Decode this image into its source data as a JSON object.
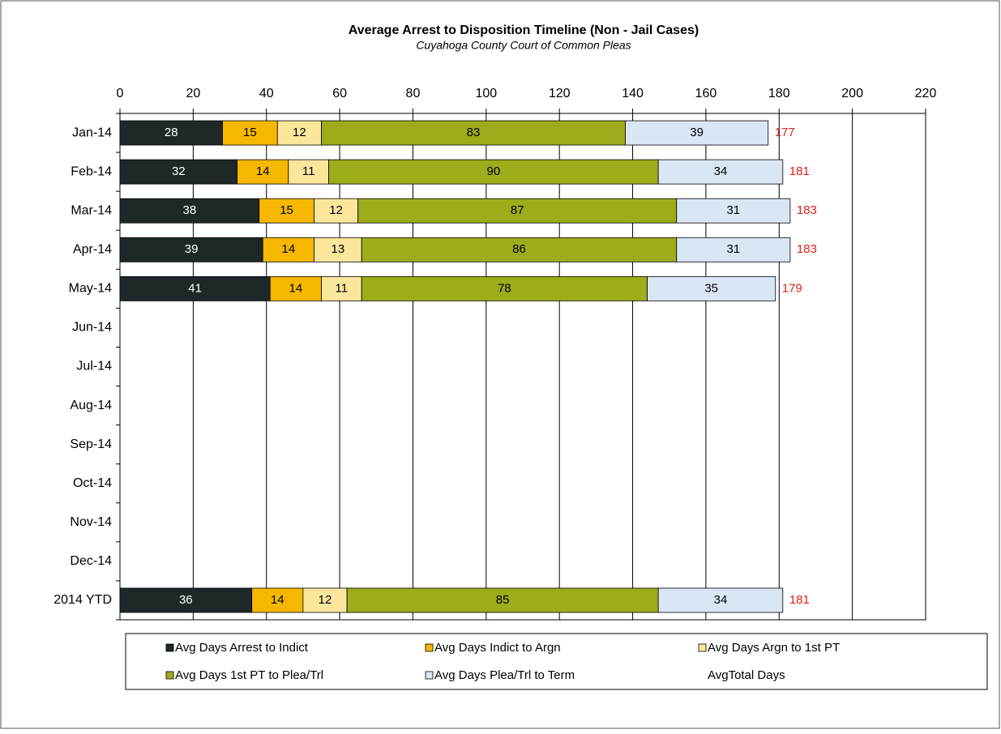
{
  "chart_data": {
    "type": "stacked_barh",
    "title": "Average Arrest to Disposition Timeline (Non - Jail Cases)",
    "subtitle": "Cuyahoga County Court of Common Pleas",
    "categories": [
      "Jan-14",
      "Feb-14",
      "Mar-14",
      "Apr-14",
      "May-14",
      "Jun-14",
      "Jul-14",
      "Aug-14",
      "Sep-14",
      "Oct-14",
      "Nov-14",
      "Dec-14",
      "2014 YTD"
    ],
    "series": [
      {
        "name": "Avg Days Arrest to Indict",
        "color": "#1e2828",
        "label_color": "#ffffff",
        "values": [
          28,
          32,
          38,
          39,
          41,
          null,
          null,
          null,
          null,
          null,
          null,
          null,
          36
        ]
      },
      {
        "name": "Avg Days Indict to Argn",
        "color": "#f5b700",
        "label_color": "#000000",
        "values": [
          15,
          14,
          15,
          14,
          14,
          null,
          null,
          null,
          null,
          null,
          null,
          null,
          14
        ]
      },
      {
        "name": "Avg Days Argn to 1st PT",
        "color": "#fbe79c",
        "label_color": "#000000",
        "values": [
          12,
          11,
          12,
          13,
          11,
          null,
          null,
          null,
          null,
          null,
          null,
          null,
          12
        ]
      },
      {
        "name": "Avg Days 1st PT to Plea/Trl",
        "color": "#9dac1b",
        "label_color": "#000000",
        "values": [
          83,
          90,
          87,
          86,
          78,
          null,
          null,
          null,
          null,
          null,
          null,
          null,
          85
        ]
      },
      {
        "name": "Avg Days Plea/Trl to Term",
        "color": "#dae6f4",
        "label_color": "#000000",
        "values": [
          39,
          34,
          31,
          31,
          35,
          null,
          null,
          null,
          null,
          null,
          null,
          null,
          34
        ]
      }
    ],
    "total_series": {
      "name": "AvgTotal Days",
      "color": "#e0201b",
      "values": [
        177,
        181,
        183,
        183,
        179,
        null,
        null,
        null,
        null,
        null,
        null,
        null,
        181
      ]
    },
    "xlim": [
      0,
      220
    ],
    "xticks": [
      0,
      20,
      40,
      60,
      80,
      100,
      120,
      140,
      160,
      180,
      200,
      220
    ],
    "grid": true
  }
}
